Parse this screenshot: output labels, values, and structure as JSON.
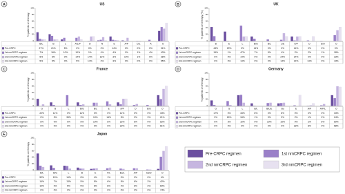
{
  "chart_data": [
    {
      "type": "bar",
      "panel_label": "A",
      "title": "US",
      "y_label": "% patients on therapy",
      "ylim": [
        0,
        100
      ],
      "yticks": [
        0,
        20,
        40,
        60,
        80,
        100
      ],
      "categories": [
        "B/L",
        "B",
        "L",
        "A/L/P",
        "D",
        "N",
        "E",
        "A/P",
        "D/L",
        "A",
        "O"
      ],
      "series": [
        {
          "name": "Pre-CRPC",
          "values": [
            27,
            21,
            5,
            0,
            0,
            2,
            14,
            2,
            0,
            0,
            31
          ],
          "value_labels": [
            "27%",
            "21%",
            "5%",
            "0%",
            "0%",
            "2%",
            "14%",
            "2%",
            "0%",
            "0%",
            "31%"
          ]
        },
        {
          "name": "1st nmCRPC regimen",
          "values": [
            7,
            16,
            10,
            10,
            1,
            4,
            4,
            1,
            1,
            4,
            43
          ],
          "value_labels": [
            "7%",
            "16%",
            "10%",
            "10%",
            "1%",
            "4%",
            "4%",
            "1%",
            "1%",
            "4%",
            "43%"
          ]
        },
        {
          "name": "2nd nmCRPC regimen",
          "values": [
            5,
            5,
            0,
            14,
            14,
            12,
            3,
            10,
            1,
            0,
            38
          ],
          "value_labels": [
            "5%",
            "5%",
            "0%",
            "14%",
            "14%",
            "12%",
            "3%",
            "10%",
            "1%",
            "0%",
            "38%"
          ]
        },
        {
          "name": "3rd nmCRPC regimen",
          "values": [
            5,
            5,
            0,
            5,
            14,
            2,
            3,
            0,
            0,
            0,
            55
          ],
          "value_labels": [
            "5%",
            "5%",
            "0%",
            "5%",
            "14%",
            "2%",
            "3%",
            "0%",
            "0%",
            "0%",
            "55%"
          ]
        }
      ]
    },
    {
      "type": "bar",
      "panel_label": "B",
      "title": "UK",
      "y_label": "% patients on therapy (%)",
      "ylim": [
        0,
        100
      ],
      "yticks": [
        0,
        20,
        40,
        60,
        80,
        100
      ],
      "categories": [
        "B",
        "E",
        "L",
        "B/G",
        "B/L",
        "L/E",
        "A/P",
        "D",
        "E/O",
        "O"
      ],
      "series": [
        {
          "name": "Pre-CRPC",
          "values": [
            43,
            29,
            0,
            14,
            0,
            0,
            14,
            0,
            0,
            0
          ],
          "value_labels": [
            "43%",
            "29%",
            "0%",
            "14%",
            "0%",
            "0%",
            "14%",
            "0%",
            "0%",
            "0%"
          ]
        },
        {
          "name": "1st nmCRPC regimen",
          "values": [
            15,
            1,
            47,
            7,
            5,
            4,
            2,
            2,
            1,
            18
          ],
          "value_labels": [
            "15%",
            "1%",
            "47%",
            "7%",
            "5%",
            "4%",
            "2%",
            "2%",
            "1%",
            "18%"
          ]
        },
        {
          "name": "2nd nmCRPC regimen",
          "values": [
            0,
            0,
            14,
            0,
            0,
            24,
            14,
            0,
            0,
            33
          ],
          "value_labels": [
            "0%",
            "0%",
            "14%",
            "0%",
            "0%",
            "24%",
            "14%",
            "0%",
            "0%",
            "33%"
          ]
        },
        {
          "name": "3rd nmCRPC regimen",
          "values": [
            0,
            0,
            14,
            0,
            0,
            14,
            14,
            14,
            0,
            43
          ],
          "value_labels": [
            "0%",
            "0%",
            "14%",
            "0%",
            "0%",
            "14%",
            "14%",
            "14%",
            "0%",
            "43%"
          ]
        }
      ]
    },
    {
      "type": "bar",
      "panel_label": "C",
      "title": "France",
      "y_label": "% patients on therapy",
      "ylim": [
        0,
        100
      ],
      "yticks": [
        0,
        20,
        40,
        60,
        80,
        100
      ],
      "categories": [
        "G",
        "B",
        "L",
        "B/G",
        "B/L",
        "E",
        "A/P",
        "D",
        "E/O",
        "O"
      ],
      "series": [
        {
          "name": "Pre-CRPC",
          "values": [
            22,
            11,
            0,
            11,
            0,
            0,
            11,
            0,
            0,
            33
          ],
          "value_labels": [
            "22%",
            "11%",
            "0%",
            "11%",
            "0%",
            "0%",
            "11%",
            "0%",
            "0%",
            "33%"
          ]
        },
        {
          "name": "1st nmCRPC regimen",
          "values": [
            0,
            3,
            33,
            3,
            10,
            14,
            5,
            3,
            3,
            21
          ],
          "value_labels": [
            "0%",
            "3%",
            "33%",
            "3%",
            "10%",
            "14%",
            "5%",
            "3%",
            "3%",
            "21%"
          ]
        },
        {
          "name": "2nd nmCRPC regimen",
          "values": [
            5,
            0,
            0,
            5,
            10,
            5,
            22,
            6,
            0,
            52
          ],
          "value_labels": [
            "5%",
            "0%",
            "0%",
            "5%",
            "10%",
            "5%",
            "22%",
            "6%",
            "0%",
            "52%"
          ]
        },
        {
          "name": "3rd nmCRPC regimen",
          "values": [
            0,
            0,
            0,
            0,
            0,
            0,
            22,
            0,
            0,
            61
          ],
          "value_labels": [
            "0%",
            "0%",
            "0%",
            "0%",
            "0%",
            "0%",
            "22%",
            "0%",
            "0%",
            "61%"
          ]
        }
      ]
    },
    {
      "type": "bar",
      "panel_label": "D",
      "title": "Germany",
      "y_label": "% patients on therapy",
      "ylim": [
        0,
        100
      ],
      "yticks": [
        0,
        20,
        40,
        60,
        80,
        100
      ],
      "categories": [
        "G",
        "S",
        "L",
        "B/L",
        "B/L/E",
        "Bu",
        "E",
        "A/P",
        "A/P/L",
        "O"
      ],
      "series": [
        {
          "name": "Pre-CRPC",
          "values": [
            17,
            0,
            33,
            8,
            0,
            8,
            0,
            0,
            0,
            33
          ],
          "value_labels": [
            "17%",
            "0%",
            "33%",
            "8%",
            "0%",
            "8%",
            "0%",
            "0%",
            "0%",
            "33%"
          ]
        },
        {
          "name": "1st nmCRPC regimen",
          "values": [
            3,
            15,
            34,
            1,
            9,
            9,
            2,
            1,
            2,
            24
          ],
          "value_labels": [
            "3%",
            "15%",
            "34%",
            "1%",
            "9%",
            "9%",
            "2%",
            "1%",
            "2%",
            "24%"
          ]
        },
        {
          "name": "2nd nmCRPC regimen",
          "values": [
            0,
            3,
            10,
            0,
            10,
            10,
            0,
            2,
            6,
            60
          ],
          "value_labels": [
            "0%",
            "3%",
            "10%",
            "0%",
            "10%",
            "10%",
            "0%",
            "2%",
            "6%",
            "60%"
          ]
        },
        {
          "name": "3rd nmCRPC regimen",
          "values": [
            0,
            0,
            0,
            0,
            0,
            0,
            33,
            8,
            0,
            58
          ],
          "value_labels": [
            "0%",
            "0%",
            "0%",
            "0%",
            "0%",
            "0%",
            "33%",
            "8%",
            "0%",
            "58%"
          ]
        }
      ]
    },
    {
      "type": "bar",
      "panel_label": "E",
      "title": "Japan",
      "y_label": "% patients on therapy",
      "ylim": [
        0,
        100
      ],
      "yticks": [
        0,
        20,
        40,
        60,
        80,
        100
      ],
      "categories": [
        "B/L",
        "B/G",
        "L",
        "B",
        "E",
        "F/L",
        "Es/L",
        "A/P",
        "Es/D",
        "O"
      ],
      "series": [
        {
          "name": "Pre-CRPC",
          "values": [
            52,
            15,
            14,
            8,
            4,
            1,
            0,
            0,
            0,
            4
          ],
          "value_labels": [
            "52%",
            "15%",
            "14%",
            "8%",
            "4%",
            "1%",
            "0%",
            "0%",
            "0%",
            "4%"
          ]
        },
        {
          "name": "1st nmCRPC regimen",
          "values": [
            14,
            7,
            13,
            5,
            5,
            6,
            5,
            6,
            2,
            42
          ],
          "value_labels": [
            "14%",
            "7%",
            "13%",
            "5%",
            "5%",
            "6%",
            "5%",
            "6%",
            "2%",
            "42%"
          ]
        },
        {
          "name": "2nd nmCRPC regimen",
          "values": [
            10,
            0,
            5,
            5,
            6,
            8,
            4,
            6,
            2,
            60
          ],
          "value_labels": [
            "10%",
            "0%",
            "5%",
            "5%",
            "6%",
            "8%",
            "4%",
            "6%",
            "2%",
            "60%"
          ]
        },
        {
          "name": "3rd nmCRPC regimen",
          "values": [
            0,
            0,
            0,
            0,
            0,
            0,
            0,
            0,
            0,
            74
          ],
          "value_labels": [
            "0%",
            "0%",
            "0%",
            "0%",
            "0%",
            "0%",
            "0%",
            "0%",
            "0%",
            "74%"
          ]
        }
      ]
    }
  ],
  "legend": [
    {
      "name": "Pre-CRPC regimen",
      "color": "#6b4fa0"
    },
    {
      "name": "1st nmCRPC regimen",
      "color": "#9a80c8"
    },
    {
      "name": "2nd nmCRPC regimen",
      "color": "#c6b6e0"
    },
    {
      "name": "3rd nmCRPC regimen",
      "color": "#e7e1f0"
    }
  ]
}
